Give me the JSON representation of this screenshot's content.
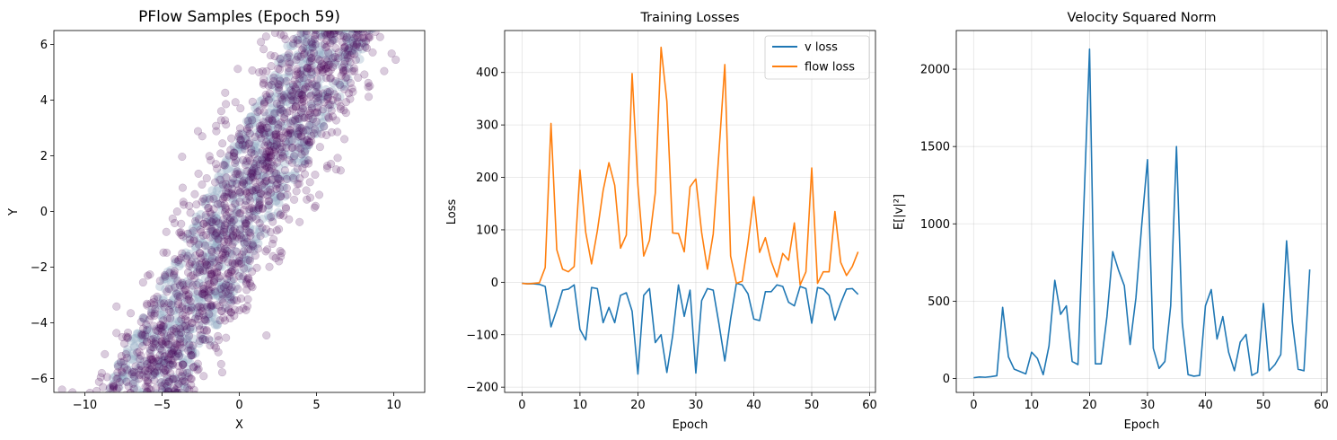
{
  "chart_data": [
    {
      "type": "scatter",
      "title": "PFlow Samples (Epoch 59)",
      "xlabel": "X",
      "ylabel": "Y",
      "xlim": [
        -12,
        12
      ],
      "ylim": [
        -6.5,
        6.5
      ],
      "xticks": [
        -10,
        -5,
        0,
        5,
        10
      ],
      "yticks": [
        -6,
        -4,
        -2,
        0,
        2,
        4,
        6
      ],
      "grid": false,
      "point_color": "#440154",
      "density_color": "#3b6b94",
      "point_alpha": 0.2,
      "description": "dense diagonal band of samples along y ≈ 1.05·x, half-width ≈ 3 in x"
    },
    {
      "type": "line",
      "title": "Training Losses",
      "xlabel": "Epoch",
      "ylabel": "Loss",
      "xlim": [
        -3,
        61
      ],
      "ylim": [
        -210,
        480
      ],
      "xticks": [
        0,
        10,
        20,
        30,
        40,
        50,
        60
      ],
      "yticks": [
        -200,
        -100,
        0,
        100,
        200,
        300,
        400
      ],
      "grid": true,
      "legend": "top-right",
      "series": [
        {
          "name": "v loss",
          "color": "#1f77b4",
          "x": [
            0,
            1,
            2,
            3,
            4,
            5,
            6,
            7,
            8,
            9,
            10,
            11,
            12,
            13,
            14,
            15,
            16,
            17,
            18,
            19,
            20,
            21,
            22,
            23,
            24,
            25,
            26,
            27,
            28,
            29,
            30,
            31,
            32,
            33,
            34,
            35,
            36,
            37,
            38,
            39,
            40,
            41,
            42,
            43,
            44,
            45,
            46,
            47,
            48,
            49,
            50,
            51,
            52,
            53,
            54,
            55,
            56,
            57,
            58
          ],
          "values": [
            -2,
            -3,
            -3,
            -4,
            -8,
            -85,
            -52,
            -15,
            -13,
            -5,
            -90,
            -110,
            -10,
            -12,
            -77,
            -48,
            -77,
            -25,
            -20,
            -55,
            -175,
            -25,
            -12,
            -115,
            -100,
            -172,
            -102,
            -5,
            -65,
            -15,
            -173,
            -35,
            -12,
            -15,
            -80,
            -150,
            -70,
            -2,
            -5,
            -22,
            -70,
            -73,
            -18,
            -18,
            -5,
            -8,
            -38,
            -45,
            -8,
            -12,
            -78,
            -10,
            -13,
            -25,
            -72,
            -40,
            -13,
            -12,
            -23
          ]
        },
        {
          "name": "flow loss",
          "color": "#ff7f0e",
          "x": [
            0,
            1,
            2,
            3,
            4,
            5,
            6,
            7,
            8,
            9,
            10,
            11,
            12,
            13,
            14,
            15,
            16,
            17,
            18,
            19,
            20,
            21,
            22,
            23,
            24,
            25,
            26,
            27,
            28,
            29,
            30,
            31,
            32,
            33,
            34,
            35,
            36,
            37,
            38,
            39,
            40,
            41,
            42,
            43,
            44,
            45,
            46,
            47,
            48,
            49,
            50,
            51,
            52,
            53,
            54,
            55,
            56,
            57,
            58
          ],
          "values": [
            -2,
            -3,
            -2,
            -1,
            28,
            303,
            62,
            25,
            20,
            30,
            214,
            95,
            35,
            98,
            175,
            228,
            185,
            65,
            90,
            398,
            185,
            50,
            80,
            170,
            448,
            345,
            94,
            93,
            58,
            182,
            197,
            95,
            25,
            92,
            250,
            415,
            50,
            -2,
            2,
            75,
            163,
            57,
            85,
            40,
            10,
            55,
            42,
            113,
            -5,
            20,
            218,
            -2,
            20,
            20,
            135,
            38,
            13,
            30,
            58
          ]
        }
      ]
    },
    {
      "type": "line",
      "title": "Velocity Squared Norm",
      "xlabel": "Epoch",
      "ylabel": "E[|v|²]",
      "xlim": [
        -3,
        61
      ],
      "ylim": [
        -90,
        2250
      ],
      "xticks": [
        0,
        10,
        20,
        30,
        40,
        50,
        60
      ],
      "yticks": [
        0,
        500,
        1000,
        1500,
        2000
      ],
      "grid": true,
      "series": [
        {
          "color": "#1f77b4",
          "x": [
            0,
            1,
            2,
            3,
            4,
            5,
            6,
            7,
            8,
            9,
            10,
            11,
            12,
            13,
            14,
            15,
            16,
            17,
            18,
            19,
            20,
            21,
            22,
            23,
            24,
            25,
            26,
            27,
            28,
            29,
            30,
            31,
            32,
            33,
            34,
            35,
            36,
            37,
            38,
            39,
            40,
            41,
            42,
            43,
            44,
            45,
            46,
            47,
            48,
            49,
            50,
            51,
            52,
            53,
            54,
            55,
            56,
            57,
            58
          ],
          "values": [
            5,
            10,
            8,
            12,
            18,
            460,
            140,
            60,
            45,
            30,
            170,
            130,
            25,
            210,
            635,
            415,
            470,
            110,
            90,
            1100,
            2130,
            95,
            95,
            400,
            820,
            700,
            600,
            220,
            520,
            990,
            1415,
            195,
            65,
            110,
            470,
            1500,
            360,
            25,
            15,
            20,
            470,
            575,
            255,
            400,
            170,
            50,
            235,
            285,
            20,
            40,
            485,
            50,
            90,
            155,
            890,
            365,
            60,
            50,
            705
          ]
        }
      ]
    }
  ]
}
